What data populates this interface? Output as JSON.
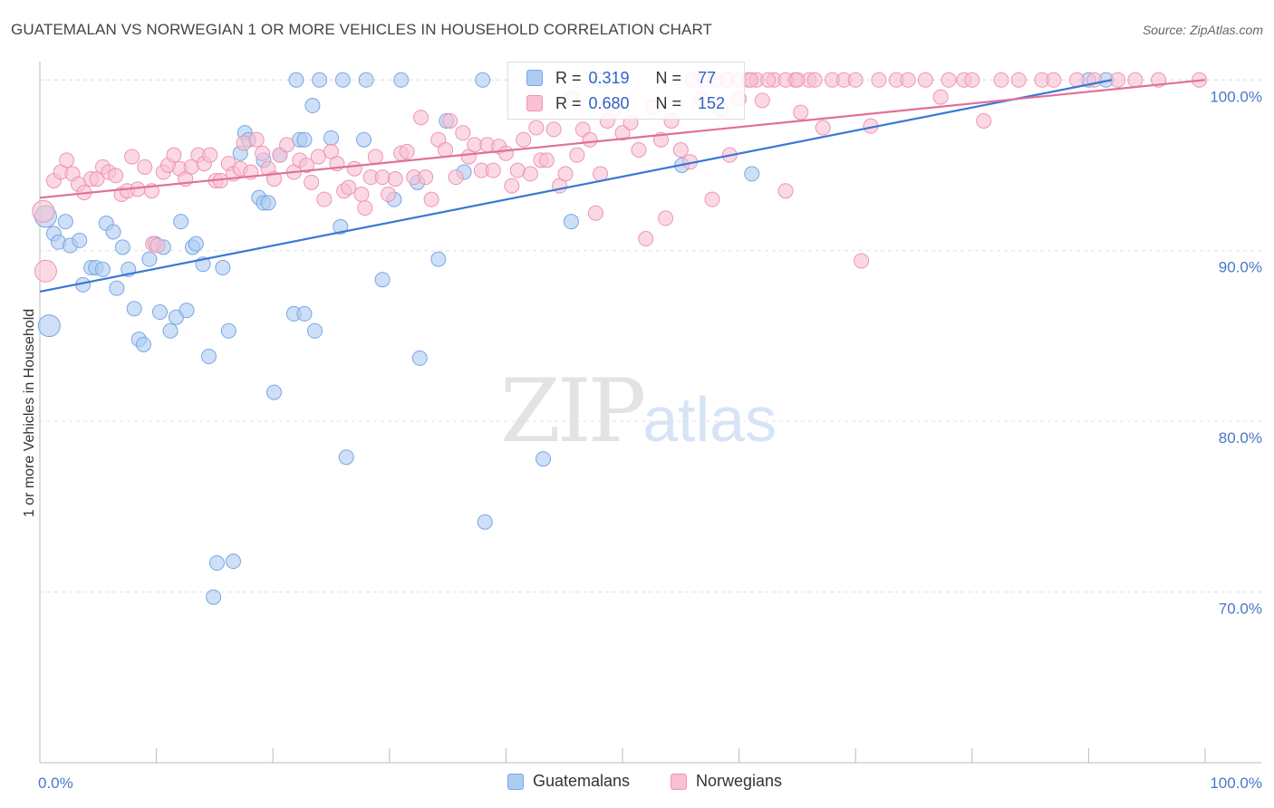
{
  "header": {
    "title": "GUATEMALAN VS NORWEGIAN 1 OR MORE VEHICLES IN HOUSEHOLD CORRELATION CHART",
    "source": "Source: ZipAtlas.com"
  },
  "watermark": {
    "zip": "ZIP",
    "atlas": "atlas"
  },
  "legend_top": {
    "rows": [
      {
        "r_label": "R =",
        "r_value": "0.319",
        "n_label": "N =",
        "n_value": "77"
      },
      {
        "r_label": "R =",
        "r_value": "0.680",
        "n_label": "N =",
        "n_value": "152"
      }
    ]
  },
  "legend_bottom": {
    "items": [
      "Guatemalans",
      "Norwegians"
    ]
  },
  "colors": {
    "blue_fill": "#aecbf2",
    "blue_stroke": "#7aa6e6",
    "blue_line": "#3a78d4",
    "pink_fill": "#f8c0d2",
    "pink_stroke": "#ef94b2",
    "pink_line": "#e0709a",
    "tick_label": "#4a78c4",
    "grid": "#e0e0e0"
  },
  "chart_data": {
    "type": "scatter",
    "title": "GUATEMALAN VS NORWEGIAN 1 OR MORE VEHICLES IN HOUSEHOLD CORRELATION CHART",
    "xlabel": "",
    "ylabel": "1 or more Vehicles in Household",
    "xlim": [
      0,
      100
    ],
    "ylim": [
      60,
      101.5
    ],
    "x_tick_labels": [
      "0.0%",
      "100.0%"
    ],
    "y_ticks": [
      70,
      80,
      90,
      100
    ],
    "y_tick_labels": [
      "70.0%",
      "80.0%",
      "90.0%",
      "100.0%"
    ],
    "grid": "horizontal dashed",
    "series": [
      {
        "name": "Guatemalans",
        "R": 0.319,
        "N": 77,
        "trend": [
          [
            0,
            87.6
          ],
          [
            92,
            100
          ]
        ],
        "points": [
          [
            0.5,
            92
          ],
          [
            0.8,
            85.6
          ],
          [
            1.2,
            91
          ],
          [
            1.6,
            90.5
          ],
          [
            2.2,
            91.7
          ],
          [
            2.6,
            90.3
          ],
          [
            3.4,
            90.6
          ],
          [
            3.7,
            88
          ],
          [
            4.4,
            89
          ],
          [
            4.8,
            89
          ],
          [
            5.4,
            88.9
          ],
          [
            5.7,
            91.6
          ],
          [
            6.3,
            91.1
          ],
          [
            6.6,
            87.8
          ],
          [
            7.1,
            90.2
          ],
          [
            7.6,
            88.9
          ],
          [
            8.1,
            86.6
          ],
          [
            8.5,
            84.8
          ],
          [
            8.9,
            84.5
          ],
          [
            9.4,
            89.5
          ],
          [
            9.9,
            90.4
          ],
          [
            10.3,
            86.4
          ],
          [
            10.6,
            90.2
          ],
          [
            11.2,
            85.3
          ],
          [
            11.7,
            86.1
          ],
          [
            12.1,
            91.7
          ],
          [
            12.6,
            86.5
          ],
          [
            13.1,
            90.2
          ],
          [
            13.4,
            90.4
          ],
          [
            14.0,
            89.2
          ],
          [
            14.5,
            83.8
          ],
          [
            14.9,
            69.7
          ],
          [
            15.2,
            71.7
          ],
          [
            15.7,
            89
          ],
          [
            16.2,
            85.3
          ],
          [
            16.6,
            71.8
          ],
          [
            17.2,
            95.7
          ],
          [
            17.6,
            96.9
          ],
          [
            17.9,
            96.5
          ],
          [
            18.8,
            93.1
          ],
          [
            19.2,
            92.8
          ],
          [
            19.6,
            92.8
          ],
          [
            19.2,
            95.3
          ],
          [
            20.1,
            81.7
          ],
          [
            20.6,
            95.6
          ],
          [
            21.8,
            86.3
          ],
          [
            22.3,
            96.5
          ],
          [
            22.7,
            96.5
          ],
          [
            22.7,
            86.3
          ],
          [
            23.6,
            85.3
          ],
          [
            23.4,
            98.5
          ],
          [
            25.0,
            96.6
          ],
          [
            25.8,
            91.4
          ],
          [
            26.3,
            77.9
          ],
          [
            24.0,
            100
          ],
          [
            22.0,
            100
          ],
          [
            26.0,
            100
          ],
          [
            28.0,
            100
          ],
          [
            31.0,
            100
          ],
          [
            27.8,
            96.5
          ],
          [
            29.4,
            88.3
          ],
          [
            30.4,
            93
          ],
          [
            32.4,
            94
          ],
          [
            32.6,
            83.7
          ],
          [
            34.2,
            89.5
          ],
          [
            34.9,
            97.6
          ],
          [
            36.4,
            94.6
          ],
          [
            38.2,
            74.1
          ],
          [
            38.0,
            100
          ],
          [
            43.2,
            77.8
          ],
          [
            45.6,
            91.7
          ],
          [
            48.1,
            100
          ],
          [
            55.1,
            95
          ],
          [
            61.1,
            94.5
          ],
          [
            90.0,
            100
          ],
          [
            91.5,
            100
          ]
        ]
      },
      {
        "name": "Norwegians",
        "R": 0.68,
        "N": 152,
        "trend": [
          [
            0,
            93.1
          ],
          [
            100,
            100
          ]
        ],
        "points": [
          [
            0.3,
            92.3
          ],
          [
            0.5,
            88.8
          ],
          [
            1.2,
            94.1
          ],
          [
            1.8,
            94.6
          ],
          [
            2.3,
            95.3
          ],
          [
            2.8,
            94.5
          ],
          [
            3.3,
            93.9
          ],
          [
            3.8,
            93.4
          ],
          [
            4.4,
            94.2
          ],
          [
            4.9,
            94.2
          ],
          [
            5.4,
            94.9
          ],
          [
            5.9,
            94.6
          ],
          [
            6.5,
            94.4
          ],
          [
            7.0,
            93.3
          ],
          [
            7.5,
            93.5
          ],
          [
            7.9,
            95.5
          ],
          [
            8.4,
            93.6
          ],
          [
            9.0,
            94.9
          ],
          [
            9.6,
            93.5
          ],
          [
            9.7,
            90.4
          ],
          [
            10.1,
            90.3
          ],
          [
            10.6,
            94.6
          ],
          [
            11.0,
            95
          ],
          [
            11.5,
            95.6
          ],
          [
            12.0,
            94.8
          ],
          [
            12.5,
            94.2
          ],
          [
            13.0,
            94.9
          ],
          [
            13.6,
            95.6
          ],
          [
            14.1,
            95.1
          ],
          [
            14.6,
            95.6
          ],
          [
            15.1,
            94.1
          ],
          [
            15.5,
            94.1
          ],
          [
            16.2,
            95.1
          ],
          [
            16.6,
            94.5
          ],
          [
            17.2,
            94.8
          ],
          [
            17.5,
            96.3
          ],
          [
            18.1,
            94.6
          ],
          [
            18.6,
            96.5
          ],
          [
            19.1,
            95.7
          ],
          [
            19.6,
            94.8
          ],
          [
            20.1,
            94.2
          ],
          [
            20.6,
            95.6
          ],
          [
            21.2,
            96.2
          ],
          [
            21.8,
            94.6
          ],
          [
            22.3,
            95.3
          ],
          [
            22.9,
            95
          ],
          [
            23.3,
            94
          ],
          [
            23.9,
            95.5
          ],
          [
            24.4,
            93
          ],
          [
            25.0,
            95.8
          ],
          [
            25.5,
            95.1
          ],
          [
            26.1,
            93.5
          ],
          [
            26.5,
            93.7
          ],
          [
            27.0,
            94.8
          ],
          [
            27.6,
            93.3
          ],
          [
            27.9,
            92.5
          ],
          [
            28.4,
            94.3
          ],
          [
            28.8,
            95.5
          ],
          [
            29.4,
            94.3
          ],
          [
            29.9,
            93.3
          ],
          [
            30.5,
            94.2
          ],
          [
            31.0,
            95.7
          ],
          [
            31.5,
            95.8
          ],
          [
            32.1,
            94.3
          ],
          [
            32.7,
            97.8
          ],
          [
            33.1,
            94.3
          ],
          [
            33.6,
            93
          ],
          [
            34.2,
            96.5
          ],
          [
            34.8,
            95.9
          ],
          [
            35.2,
            97.6
          ],
          [
            35.7,
            94.3
          ],
          [
            36.3,
            96.9
          ],
          [
            36.8,
            95.5
          ],
          [
            37.3,
            96.2
          ],
          [
            37.9,
            94.7
          ],
          [
            38.4,
            96.2
          ],
          [
            38.9,
            94.7
          ],
          [
            39.4,
            96.1
          ],
          [
            40.0,
            95.7
          ],
          [
            40.5,
            93.8
          ],
          [
            41.0,
            94.7
          ],
          [
            41.5,
            96.5
          ],
          [
            42.1,
            94.5
          ],
          [
            42.6,
            97.2
          ],
          [
            43.0,
            95.3
          ],
          [
            43.5,
            95.3
          ],
          [
            44.1,
            97.1
          ],
          [
            44.6,
            93.8
          ],
          [
            45.1,
            94.5
          ],
          [
            45.6,
            98.9
          ],
          [
            46.1,
            95.6
          ],
          [
            46.6,
            97.1
          ],
          [
            47.2,
            96.5
          ],
          [
            47.7,
            92.2
          ],
          [
            48.1,
            94.5
          ],
          [
            48.7,
            97.6
          ],
          [
            49.3,
            98.3
          ],
          [
            50.0,
            96.9
          ],
          [
            50.7,
            97.5
          ],
          [
            51.4,
            95.9
          ],
          [
            52.0,
            90.7
          ],
          [
            52.6,
            98.4
          ],
          [
            53.3,
            96.5
          ],
          [
            53.7,
            91.9
          ],
          [
            54.2,
            97.6
          ],
          [
            55.0,
            95.9
          ],
          [
            55.8,
            95.2
          ],
          [
            56.8,
            98.9
          ],
          [
            57.7,
            93
          ],
          [
            58.4,
            98.3
          ],
          [
            59.2,
            95.6
          ],
          [
            60.0,
            98.9
          ],
          [
            60.8,
            100
          ],
          [
            61.5,
            100
          ],
          [
            62.0,
            98.8
          ],
          [
            63.0,
            100
          ],
          [
            64.0,
            93.5
          ],
          [
            64.8,
            100
          ],
          [
            65.3,
            98.1
          ],
          [
            66.0,
            100
          ],
          [
            67.2,
            97.2
          ],
          [
            68.0,
            100
          ],
          [
            69.0,
            100
          ],
          [
            70.0,
            100
          ],
          [
            70.5,
            89.4
          ],
          [
            71.3,
            97.3
          ],
          [
            72.0,
            100
          ],
          [
            73.5,
            100
          ],
          [
            74.5,
            100
          ],
          [
            76.0,
            100
          ],
          [
            77.3,
            99
          ],
          [
            78.0,
            100
          ],
          [
            79.3,
            100
          ],
          [
            80.0,
            100
          ],
          [
            81.0,
            97.6
          ],
          [
            82.5,
            100
          ],
          [
            84.0,
            100
          ],
          [
            86.0,
            100
          ],
          [
            87.0,
            100
          ],
          [
            89.0,
            100
          ],
          [
            90.5,
            100
          ],
          [
            92.5,
            100
          ],
          [
            94.0,
            100
          ],
          [
            96.0,
            100
          ],
          [
            99.5,
            100
          ],
          [
            56.0,
            100
          ],
          [
            57.0,
            100
          ],
          [
            58.0,
            100
          ],
          [
            59.0,
            100
          ],
          [
            60.0,
            100
          ],
          [
            61.0,
            100
          ],
          [
            62.5,
            100
          ],
          [
            64.0,
            100
          ],
          [
            65.0,
            100
          ],
          [
            66.5,
            100
          ]
        ]
      }
    ]
  }
}
